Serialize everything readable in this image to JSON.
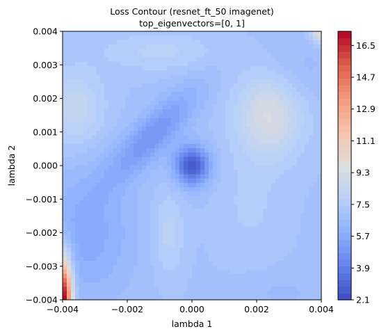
{
  "chart_data": {
    "type": "contour",
    "title": "Loss Contour (resnet_ft_50 imagenet)",
    "subtitle": "top_eigenvectors=[0, 1]",
    "xlabel": "lambda 1",
    "ylabel": "lambda 2",
    "xlim": [
      -0.004,
      0.004
    ],
    "ylim": [
      -0.004,
      0.004
    ],
    "x_ticks": [
      -0.004,
      -0.002,
      0.0,
      0.002,
      0.004
    ],
    "x_tick_labels": [
      "−0.004",
      "−0.002",
      "0.000",
      "0.002",
      "0.004"
    ],
    "y_ticks": [
      -0.004,
      -0.003,
      -0.002,
      -0.001,
      0.0,
      0.001,
      0.002,
      0.003,
      0.004
    ],
    "y_tick_labels": [
      "−0.004",
      "−0.003",
      "−0.002",
      "−0.001",
      "0.000",
      "0.001",
      "0.002",
      "0.003",
      "0.004"
    ],
    "colormap": "coolwarm",
    "value_range": [
      2.1,
      17.3
    ],
    "colorbar_ticks": [
      2.1,
      3.9,
      5.7,
      7.5,
      9.3,
      11.1,
      12.9,
      14.7,
      16.5
    ],
    "colorbar_tick_labels": [
      "2.1",
      "3.9",
      "5.7",
      "7.5",
      "9.3",
      "11.1",
      "12.9",
      "14.7",
      "16.5"
    ],
    "grid": false,
    "features": [
      {
        "description": "global minimum basin",
        "x": 0.0,
        "y": 0.0,
        "value": 2.5
      },
      {
        "description": "elongated low valley",
        "x": -0.0012,
        "y": 0.0009,
        "value": 4.6
      },
      {
        "description": "high region top-right",
        "x": 0.0024,
        "y": 0.0015,
        "value": 9.3
      },
      {
        "description": "high region top-left",
        "x": -0.0036,
        "y": 0.0017,
        "value": 8.4
      },
      {
        "description": "peak bottom-left corner",
        "x": -0.004,
        "y": -0.004,
        "value": 17.3
      },
      {
        "description": "high top-right corner",
        "x": 0.004,
        "y": 0.004,
        "value": 10.5
      }
    ]
  }
}
